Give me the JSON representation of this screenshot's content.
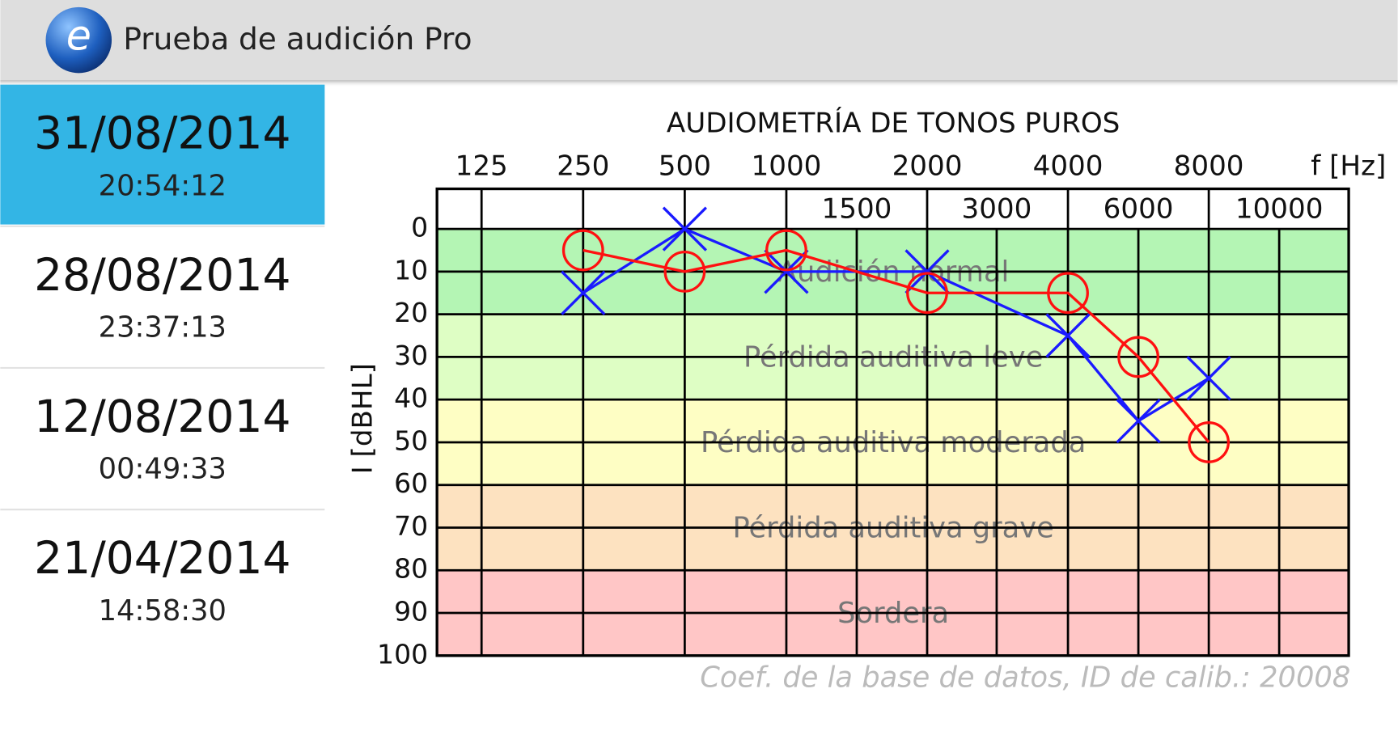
{
  "app_bar": {
    "title": "Prueba de audición Pro"
  },
  "history": [
    {
      "date": "31/08/2014",
      "time": "20:54:12"
    },
    {
      "date": "28/08/2014",
      "time": "23:37:13"
    },
    {
      "date": "12/08/2014",
      "time": "00:49:33"
    },
    {
      "date": "21/04/2014",
      "time": "14:58:30"
    }
  ],
  "chart_data": {
    "type": "audiogram",
    "title": "AUDIOMETRÍA DE TONOS PUROS",
    "x_label": "f [Hz]",
    "y_label": "I [dBHL]",
    "xticks": [
      125,
      250,
      500,
      1000,
      1500,
      2000,
      3000,
      4000,
      6000,
      8000,
      10000
    ],
    "ylim": [
      0,
      100
    ],
    "yticks": [
      0,
      10,
      20,
      30,
      40,
      50,
      60,
      70,
      80,
      90,
      100
    ],
    "y_inverted": true,
    "grid": true,
    "bands": [
      {
        "label": "Audición normal",
        "from": 0,
        "to": 20,
        "color": "#b4f5b4"
      },
      {
        "label": "Pérdida auditiva leve",
        "from": 20,
        "to": 40,
        "color": "#defec4"
      },
      {
        "label": "Pérdida auditiva moderada",
        "from": 40,
        "to": 60,
        "color": "#fefec4"
      },
      {
        "label": "Pérdida auditiva grave",
        "from": 60,
        "to": 80,
        "color": "#fde2c0"
      },
      {
        "label": "Sordera",
        "from": 80,
        "to": 100,
        "color": "#ffc6c6"
      }
    ],
    "series": [
      {
        "marker": "o",
        "color": "#ff1010",
        "x": [
          250,
          500,
          1000,
          2000,
          4000,
          6000,
          8000
        ],
        "values": [
          5,
          10,
          5,
          15,
          15,
          30,
          50
        ]
      },
      {
        "marker": "x",
        "color": "#1a1aff",
        "x": [
          250,
          500,
          1000,
          2000,
          4000,
          6000,
          8000
        ],
        "values": [
          15,
          0,
          10,
          10,
          25,
          45,
          35
        ]
      }
    ],
    "footnote": "Coef. de la base de datos, ID de calib.: 20008"
  }
}
